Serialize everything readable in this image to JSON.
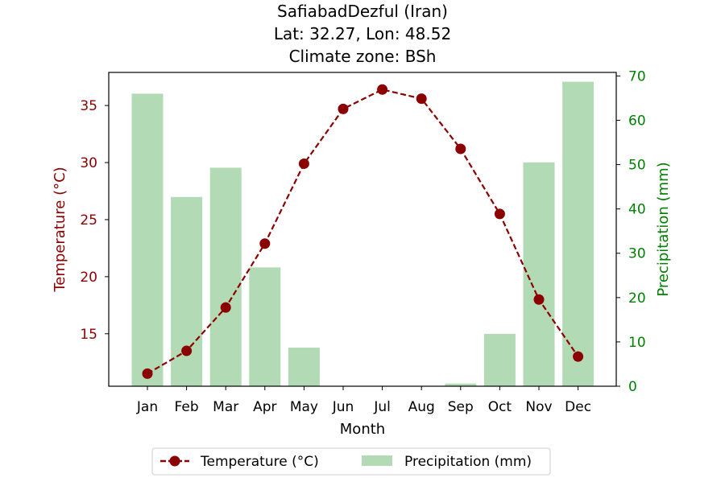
{
  "chart_data": {
    "type": "bar+line",
    "title_lines": [
      "SafiabadDezful (Iran)",
      "Lat: 32.27, Lon: 48.52",
      "Climate zone: BSh"
    ],
    "xlabel": "Month",
    "categories": [
      "Jan",
      "Feb",
      "Mar",
      "Apr",
      "May",
      "Jun",
      "Jul",
      "Aug",
      "Sep",
      "Oct",
      "Nov",
      "Dec"
    ],
    "temperature": {
      "name": "Temperature (°C)",
      "axis_label": "Temperature (°C)",
      "values": [
        11.5,
        13.5,
        17.3,
        22.9,
        29.9,
        34.7,
        36.4,
        35.6,
        31.2,
        25.5,
        18.0,
        13.0
      ],
      "ylim": [
        10.4,
        37.9
      ],
      "ticks": [
        15,
        20,
        25,
        30,
        35
      ],
      "color": "#8b0000",
      "style": "dashed-line-with-circles"
    },
    "precipitation": {
      "name": "Precipitation (mm)",
      "axis_label": "Precipitation (mm)",
      "values": [
        66.0,
        42.7,
        49.3,
        26.8,
        8.7,
        0.0,
        0.0,
        0.0,
        0.6,
        11.8,
        50.5,
        68.7
      ],
      "ylim": [
        0,
        70.8
      ],
      "ticks": [
        0,
        10,
        20,
        30,
        40,
        50,
        60,
        70
      ],
      "color": "#b2dab4",
      "axis_color": "#008000"
    },
    "legend_position": "bottom-center",
    "grid": false
  }
}
